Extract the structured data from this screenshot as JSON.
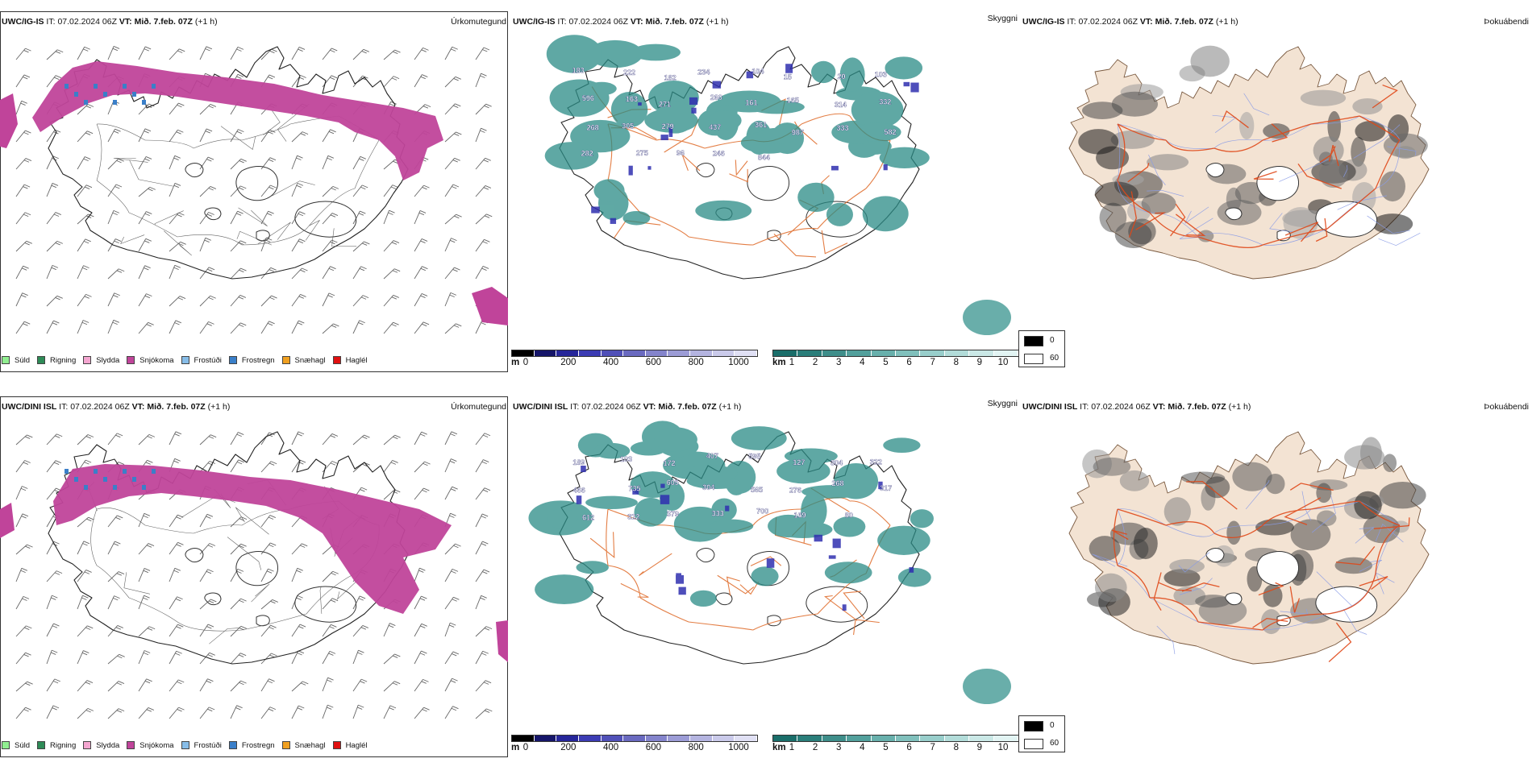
{
  "rows": [
    {
      "model": "UWC/IG-IS",
      "it_label": "IT:",
      "it_value": "07.02.2024 06Z",
      "vt_label": "VT:",
      "vt_value": "Mið. 7.feb. 07Z",
      "lead": "(+1 h)",
      "panel_titles": [
        "Úrkomutegund",
        "Skyggni",
        "Þokuábendi"
      ]
    },
    {
      "model": "UWC/DINI ISL",
      "it_label": "IT:",
      "it_value": "07.02.2024 06Z",
      "vt_label": "VT:",
      "vt_value": "Mið. 7.feb. 07Z",
      "lead": "(+1 h)",
      "panel_titles": [
        "Úrkomutegund",
        "Skyggni",
        "Þokuábendi"
      ]
    }
  ],
  "precip_legend": [
    {
      "label": "Súld",
      "color": "#90ee90"
    },
    {
      "label": "Rigning",
      "color": "#2e8b57"
    },
    {
      "label": "Slydda",
      "color": "#f4a6d0"
    },
    {
      "label": "Snjókoma",
      "color": "#c0449a"
    },
    {
      "label": "Frostúði",
      "color": "#87bde8"
    },
    {
      "label": "Frostregn",
      "color": "#3a7fc9"
    },
    {
      "label": "Snæhagl",
      "color": "#f0a020"
    },
    {
      "label": "Haglél",
      "color": "#e01010"
    }
  ],
  "ceiling_bar": {
    "unit": "m",
    "ticks": [
      "0",
      "200",
      "400",
      "600",
      "800",
      "1000"
    ],
    "colors": [
      "#000000",
      "#16166a",
      "#26269a",
      "#3c3cb4",
      "#5050b8",
      "#6a6ac0",
      "#8484cc",
      "#9c9cd6",
      "#b4b4e0",
      "#cacaea",
      "#e0e0f4"
    ]
  },
  "visibility_bar": {
    "unit": "km",
    "ticks": [
      "1",
      "2",
      "3",
      "4",
      "5",
      "6",
      "7",
      "8",
      "9",
      "10"
    ],
    "colors": [
      "#1a6e6a",
      "#2a7e7a",
      "#3e8e8a",
      "#52a09c",
      "#68b0ac",
      "#80c0bc",
      "#98cecb",
      "#b2dcd9",
      "#cae8e6",
      "#e2f4f3"
    ]
  },
  "fog_legend": [
    {
      "label": "0",
      "color": "#000000"
    },
    {
      "label": "60",
      "color": "#ffffff"
    }
  ],
  "ceiling_labels": [
    [
      "183",
      "222",
      "182",
      "234",
      "104",
      "15",
      "20",
      "103",
      "596",
      "163",
      "271",
      "260",
      "161",
      "165",
      "314",
      "332",
      "268",
      "305",
      "279",
      "437",
      "361",
      "987",
      "333",
      "582",
      "282",
      "275",
      "96",
      "246",
      "844"
    ],
    [
      "189",
      "103",
      "172",
      "407",
      "595",
      "127",
      "304",
      "322",
      "466",
      "735",
      "605",
      "304",
      "565",
      "276",
      "268",
      "317",
      "612",
      "322",
      "379",
      "333",
      "700",
      "169",
      "80"
    ]
  ],
  "colors": {
    "snow": "#c0449a",
    "land": "#f3e3d3",
    "roads": "#e07030",
    "water": "#8a9ce6",
    "fog_teal": "#2a8c86"
  }
}
